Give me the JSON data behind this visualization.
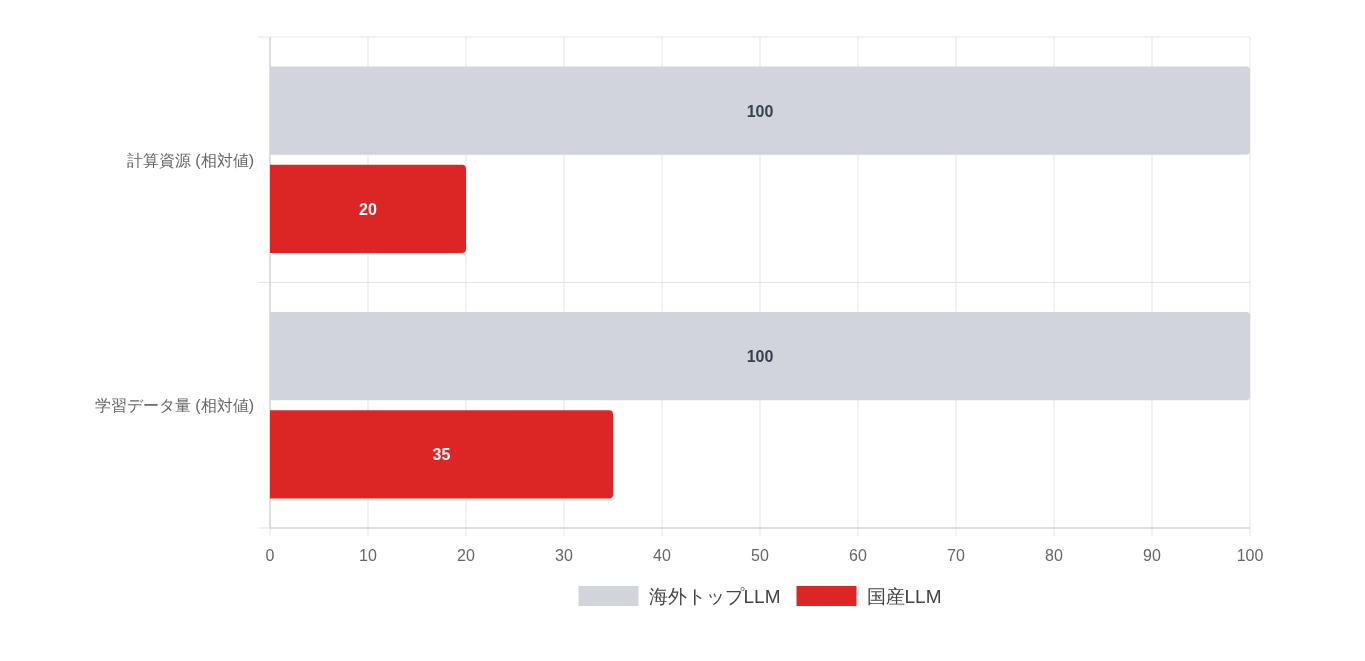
{
  "chart_data": {
    "type": "bar",
    "orientation": "horizontal",
    "categories": [
      "計算資源 (相対値)",
      "学習データ量 (相対値)"
    ],
    "series": [
      {
        "name": "海外トップLLM",
        "color": "#d1d5db",
        "values": [
          100,
          100
        ]
      },
      {
        "name": "国産LLM",
        "color": "#dc2626",
        "values": [
          20,
          35
        ]
      }
    ],
    "xlim": [
      0,
      100
    ],
    "xticks": [
      0,
      10,
      20,
      30,
      40,
      50,
      60,
      70,
      80,
      90,
      100
    ],
    "grid": true,
    "legend": "bottom",
    "data_labels": true
  }
}
